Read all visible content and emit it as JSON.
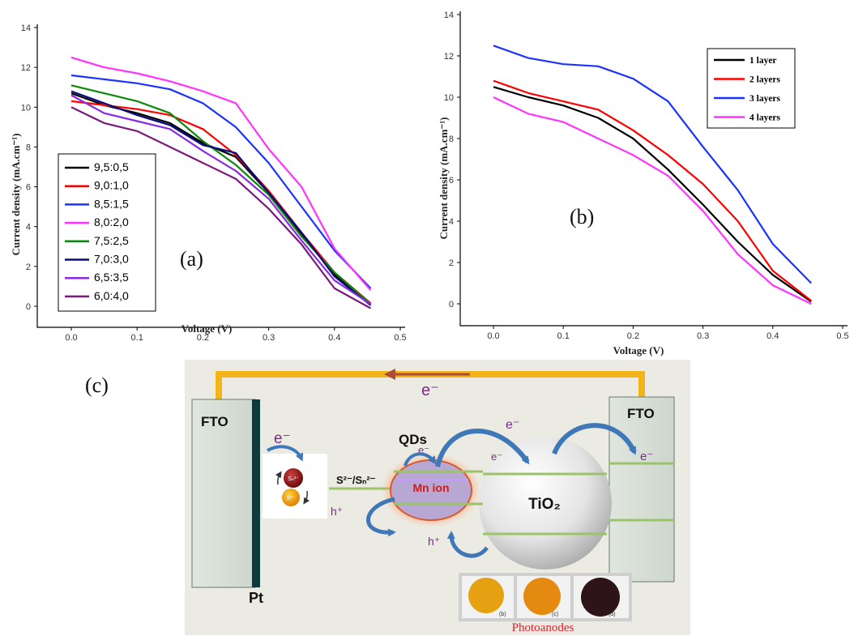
{
  "chart_data": [
    {
      "type": "line",
      "panel_label": "(a)",
      "xlabel": "Voltage (V)",
      "ylabel": "Current density (mA.cm⁻¹)",
      "xlim": [
        -0.05,
        0.5
      ],
      "ylim": [
        -1,
        14
      ],
      "xticks": [
        "0.0",
        "0.1",
        "0.2",
        "0.3",
        "0.4",
        "0.5"
      ],
      "yticks": [
        "0",
        "2",
        "4",
        "6",
        "8",
        "10",
        "12",
        "14"
      ],
      "legend_position": "left-center",
      "series": [
        {
          "name": "9,5:0,5",
          "color": "#000000",
          "points": [
            [
              0,
              10.7
            ],
            [
              0.05,
              10.1
            ],
            [
              0.1,
              9.7
            ],
            [
              0.15,
              9.2
            ],
            [
              0.2,
              8.2
            ],
            [
              0.25,
              7.5
            ],
            [
              0.3,
              5.7
            ],
            [
              0.35,
              3.6
            ],
            [
              0.4,
              1.6
            ],
            [
              0.455,
              0.1
            ]
          ]
        },
        {
          "name": "9,0:1,0",
          "color": "#ff0000",
          "points": [
            [
              0,
              10.3
            ],
            [
              0.05,
              10.1
            ],
            [
              0.1,
              9.9
            ],
            [
              0.15,
              9.6
            ],
            [
              0.2,
              8.9
            ],
            [
              0.25,
              7.6
            ],
            [
              0.3,
              5.8
            ],
            [
              0.35,
              3.7
            ],
            [
              0.4,
              1.7
            ],
            [
              0.455,
              0.15
            ]
          ]
        },
        {
          "name": "8,5:1,5",
          "color": "#1a33ff",
          "points": [
            [
              0,
              11.6
            ],
            [
              0.05,
              11.4
            ],
            [
              0.1,
              11.2
            ],
            [
              0.15,
              10.9
            ],
            [
              0.2,
              10.2
            ],
            [
              0.25,
              9.0
            ],
            [
              0.3,
              7.2
            ],
            [
              0.35,
              5.0
            ],
            [
              0.4,
              2.8
            ],
            [
              0.455,
              0.9
            ]
          ]
        },
        {
          "name": "8,0:2,0",
          "color": "#ff33ff",
          "points": [
            [
              0,
              12.5
            ],
            [
              0.05,
              12.0
            ],
            [
              0.1,
              11.7
            ],
            [
              0.15,
              11.3
            ],
            [
              0.2,
              10.8
            ],
            [
              0.25,
              10.2
            ],
            [
              0.3,
              7.9
            ],
            [
              0.35,
              6.0
            ],
            [
              0.4,
              2.9
            ],
            [
              0.455,
              0.8
            ]
          ]
        },
        {
          "name": "7,5:2,5",
          "color": "#0a8a0a",
          "points": [
            [
              0,
              11.1
            ],
            [
              0.05,
              10.7
            ],
            [
              0.1,
              10.3
            ],
            [
              0.15,
              9.7
            ],
            [
              0.2,
              8.3
            ],
            [
              0.25,
              7.1
            ],
            [
              0.3,
              5.6
            ],
            [
              0.35,
              3.5
            ],
            [
              0.4,
              1.7
            ],
            [
              0.455,
              0.1
            ]
          ]
        },
        {
          "name": "7,0:3,0",
          "color": "#0a0a80",
          "points": [
            [
              0,
              10.8
            ],
            [
              0.05,
              10.2
            ],
            [
              0.1,
              9.6
            ],
            [
              0.15,
              9.1
            ],
            [
              0.2,
              8.1
            ],
            [
              0.25,
              7.7
            ],
            [
              0.3,
              5.7
            ],
            [
              0.35,
              3.7
            ],
            [
              0.4,
              1.5
            ],
            [
              0.455,
              0.05
            ]
          ]
        },
        {
          "name": "6,5:3,5",
          "color": "#8a2be2",
          "points": [
            [
              0,
              10.6
            ],
            [
              0.05,
              9.7
            ],
            [
              0.1,
              9.3
            ],
            [
              0.15,
              8.9
            ],
            [
              0.2,
              7.8
            ],
            [
              0.25,
              6.8
            ],
            [
              0.3,
              5.4
            ],
            [
              0.35,
              3.3
            ],
            [
              0.4,
              1.3
            ],
            [
              0.455,
              0.1
            ]
          ]
        },
        {
          "name": "6,0:4,0",
          "color": "#7a1a7a",
          "points": [
            [
              0,
              10.0
            ],
            [
              0.05,
              9.2
            ],
            [
              0.1,
              8.8
            ],
            [
              0.15,
              8.0
            ],
            [
              0.2,
              7.2
            ],
            [
              0.25,
              6.4
            ],
            [
              0.3,
              4.9
            ],
            [
              0.35,
              3.1
            ],
            [
              0.4,
              0.9
            ],
            [
              0.455,
              -0.1
            ]
          ]
        }
      ]
    },
    {
      "type": "line",
      "panel_label": "(b)",
      "xlabel": "Voltage (V)",
      "ylabel": "Current density (mA.cm⁻¹)",
      "xlim": [
        -0.05,
        0.5
      ],
      "ylim": [
        -1,
        14
      ],
      "xticks": [
        "0.0",
        "0.1",
        "0.2",
        "0.3",
        "0.4",
        "0.5"
      ],
      "yticks": [
        "0",
        "2",
        "4",
        "6",
        "8",
        "10",
        "12",
        "14"
      ],
      "legend_position": "top-right",
      "series": [
        {
          "name": "1 layer",
          "color": "#000000",
          "points": [
            [
              0,
              10.5
            ],
            [
              0.05,
              10.0
            ],
            [
              0.1,
              9.6
            ],
            [
              0.15,
              9.0
            ],
            [
              0.2,
              8.0
            ],
            [
              0.25,
              6.5
            ],
            [
              0.3,
              4.8
            ],
            [
              0.35,
              3.0
            ],
            [
              0.4,
              1.4
            ],
            [
              0.455,
              0.1
            ]
          ]
        },
        {
          "name": "2 layers",
          "color": "#ff0000",
          "points": [
            [
              0,
              10.8
            ],
            [
              0.05,
              10.2
            ],
            [
              0.1,
              9.8
            ],
            [
              0.15,
              9.4
            ],
            [
              0.2,
              8.4
            ],
            [
              0.25,
              7.2
            ],
            [
              0.3,
              5.8
            ],
            [
              0.35,
              4.0
            ],
            [
              0.4,
              1.6
            ],
            [
              0.455,
              0.15
            ]
          ]
        },
        {
          "name": "3 layers",
          "color": "#1a33ff",
          "points": [
            [
              0,
              12.5
            ],
            [
              0.05,
              11.9
            ],
            [
              0.1,
              11.6
            ],
            [
              0.15,
              11.5
            ],
            [
              0.2,
              10.9
            ],
            [
              0.25,
              9.8
            ],
            [
              0.3,
              7.6
            ],
            [
              0.35,
              5.5
            ],
            [
              0.4,
              2.9
            ],
            [
              0.455,
              1.0
            ]
          ]
        },
        {
          "name": "4 layers",
          "color": "#ff33ff",
          "points": [
            [
              0,
              10.0
            ],
            [
              0.05,
              9.2
            ],
            [
              0.1,
              8.8
            ],
            [
              0.15,
              8.0
            ],
            [
              0.2,
              7.2
            ],
            [
              0.25,
              6.2
            ],
            [
              0.3,
              4.5
            ],
            [
              0.35,
              2.4
            ],
            [
              0.4,
              0.9
            ],
            [
              0.455,
              0.0
            ]
          ]
        }
      ]
    }
  ],
  "diagram": {
    "panel_label": "(c)",
    "electrode_left": "FTO",
    "electrode_right": "FTO",
    "counter_label": "Pt",
    "electron": "e⁻",
    "hole": "h⁺",
    "qds_label": "QDs",
    "mn_label": "Mn ion",
    "redox_label": "S²⁻/Sₙ²⁻",
    "tio2_label": "TiO₂",
    "sn_ion": "Sₙ²⁻",
    "s_ion": "S²⁻",
    "photo_tags": [
      "(b)",
      "(c)",
      "(d)"
    ],
    "photo_caption": "Photoanodes"
  }
}
